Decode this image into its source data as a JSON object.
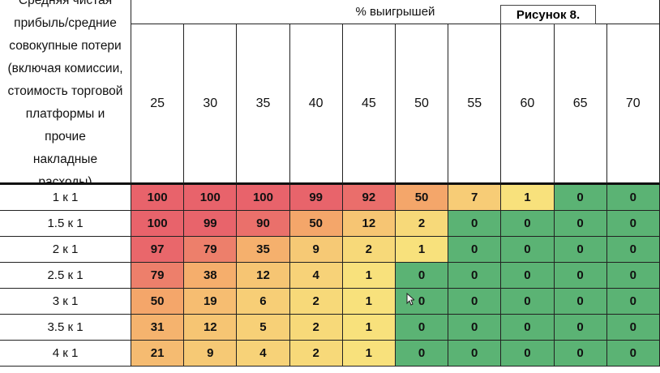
{
  "figure_label": "Рисунок 8.",
  "chart_data": {
    "type": "heatmap",
    "row_header_lines": [
      "Средняя чистая",
      "прибыль/средние",
      "совокупные потери",
      "(включая комиссии,",
      "стоимость торговой",
      "платформы и прочие",
      "накладные расходы)"
    ],
    "column_group_label": "% выигрышей",
    "columns": [
      "25",
      "30",
      "35",
      "40",
      "45",
      "50",
      "55",
      "60",
      "65",
      "70"
    ],
    "rows": [
      "1 к 1",
      "1.5 к 1",
      "2 к 1",
      "2.5 к 1",
      "3 к 1",
      "3.5 к 1",
      "4 к 1"
    ],
    "values": [
      [
        100,
        100,
        100,
        99,
        92,
        50,
        7,
        1,
        0,
        0
      ],
      [
        100,
        99,
        90,
        50,
        12,
        2,
        0,
        0,
        0,
        0
      ],
      [
        97,
        79,
        35,
        9,
        2,
        1,
        0,
        0,
        0,
        0
      ],
      [
        79,
        38,
        12,
        4,
        1,
        0,
        0,
        0,
        0,
        0
      ],
      [
        50,
        19,
        6,
        2,
        1,
        0,
        0,
        0,
        0,
        0
      ],
      [
        31,
        12,
        5,
        2,
        1,
        0,
        0,
        0,
        0,
        0
      ],
      [
        21,
        9,
        4,
        2,
        1,
        0,
        0,
        0,
        0,
        0
      ]
    ],
    "color_scale": {
      "high": "#e8636b",
      "mid": "#f4a66a",
      "low": "#f8e17c",
      "zero": "#5bb374"
    }
  }
}
